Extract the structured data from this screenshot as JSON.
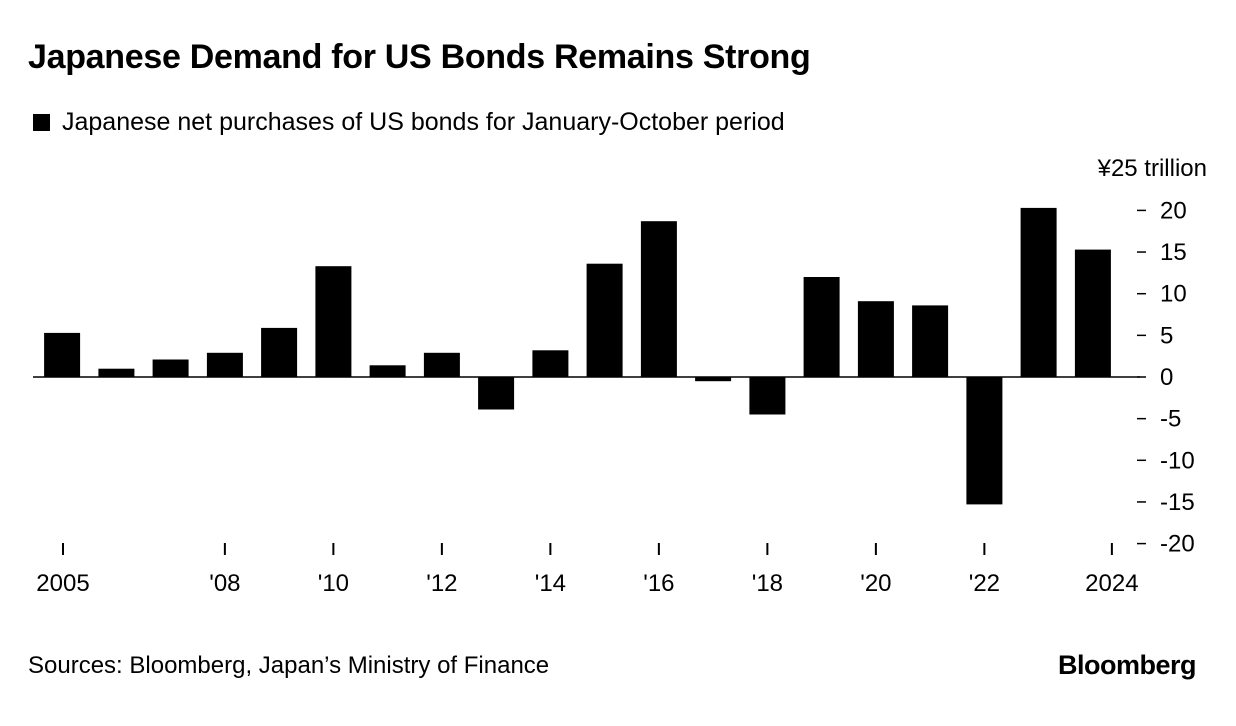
{
  "title": "Japanese Demand for US Bonds Remains Strong",
  "legend_label": "Japanese net purchases of US bonds for January-October period",
  "source": "Sources: Bloomberg, Japan’s Ministry of Finance",
  "brand": "Bloomberg",
  "colors": {
    "bar": "#000000",
    "zero_line": "#000000",
    "background": "#ffffff"
  },
  "chart_data": {
    "type": "bar",
    "title": "Japanese Demand for US Bonds Remains Strong",
    "ylabel": "¥25 trillion",
    "xlabel": "",
    "ylim": [
      -20,
      25
    ],
    "yticks": [
      20,
      15,
      10,
      5,
      0,
      -5,
      -10,
      -15,
      -20
    ],
    "y_unit_label": "¥25 trillion",
    "categories": [
      "2005",
      "2006",
      "2007",
      "2008",
      "2009",
      "2010",
      "2011",
      "2012",
      "2013",
      "2014",
      "2015",
      "2016",
      "2017",
      "2018",
      "2019",
      "2020",
      "2021",
      "2022",
      "2023",
      "2024"
    ],
    "values": [
      5.3,
      1.0,
      2.1,
      2.9,
      5.9,
      13.3,
      1.4,
      2.9,
      -3.9,
      3.2,
      13.6,
      18.7,
      -0.5,
      -4.5,
      12.0,
      9.1,
      8.6,
      -15.3,
      20.3,
      15.3
    ],
    "xtick_labels": [
      {
        "category": "2005",
        "label": "2005"
      },
      {
        "category": "2008",
        "label": "'08"
      },
      {
        "category": "2010",
        "label": "'10"
      },
      {
        "category": "2012",
        "label": "'12"
      },
      {
        "category": "2014",
        "label": "'14"
      },
      {
        "category": "2016",
        "label": "'16"
      },
      {
        "category": "2018",
        "label": "'18"
      },
      {
        "category": "2020",
        "label": "'20"
      },
      {
        "category": "2022",
        "label": "'22"
      },
      {
        "category": "2024",
        "label": "2024"
      }
    ],
    "grid": false,
    "legend_position": "top-left"
  }
}
